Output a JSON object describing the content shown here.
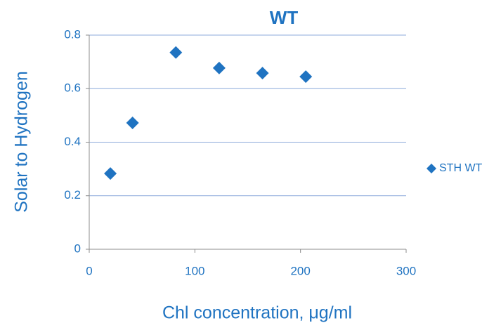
{
  "chart_data": {
    "type": "scatter",
    "title": "WT",
    "x_label": "Chl concentration, μg/ml",
    "y_label": "Solar to Hydrogen",
    "series": [
      {
        "name": "STH WT",
        "color": "#1f73c1",
        "x": [
          20,
          41,
          82,
          123,
          164,
          205
        ],
        "values": [
          0.283,
          0.472,
          0.735,
          0.677,
          0.658,
          0.645
        ]
      }
    ],
    "xlim": [
      0,
      300
    ],
    "xticks": [
      0,
      100,
      200,
      300
    ],
    "ylim": [
      0,
      0.8
    ],
    "yticks": [
      0,
      0.2,
      0.4,
      0.6,
      0.8
    ],
    "grid": true,
    "legend": "right"
  }
}
